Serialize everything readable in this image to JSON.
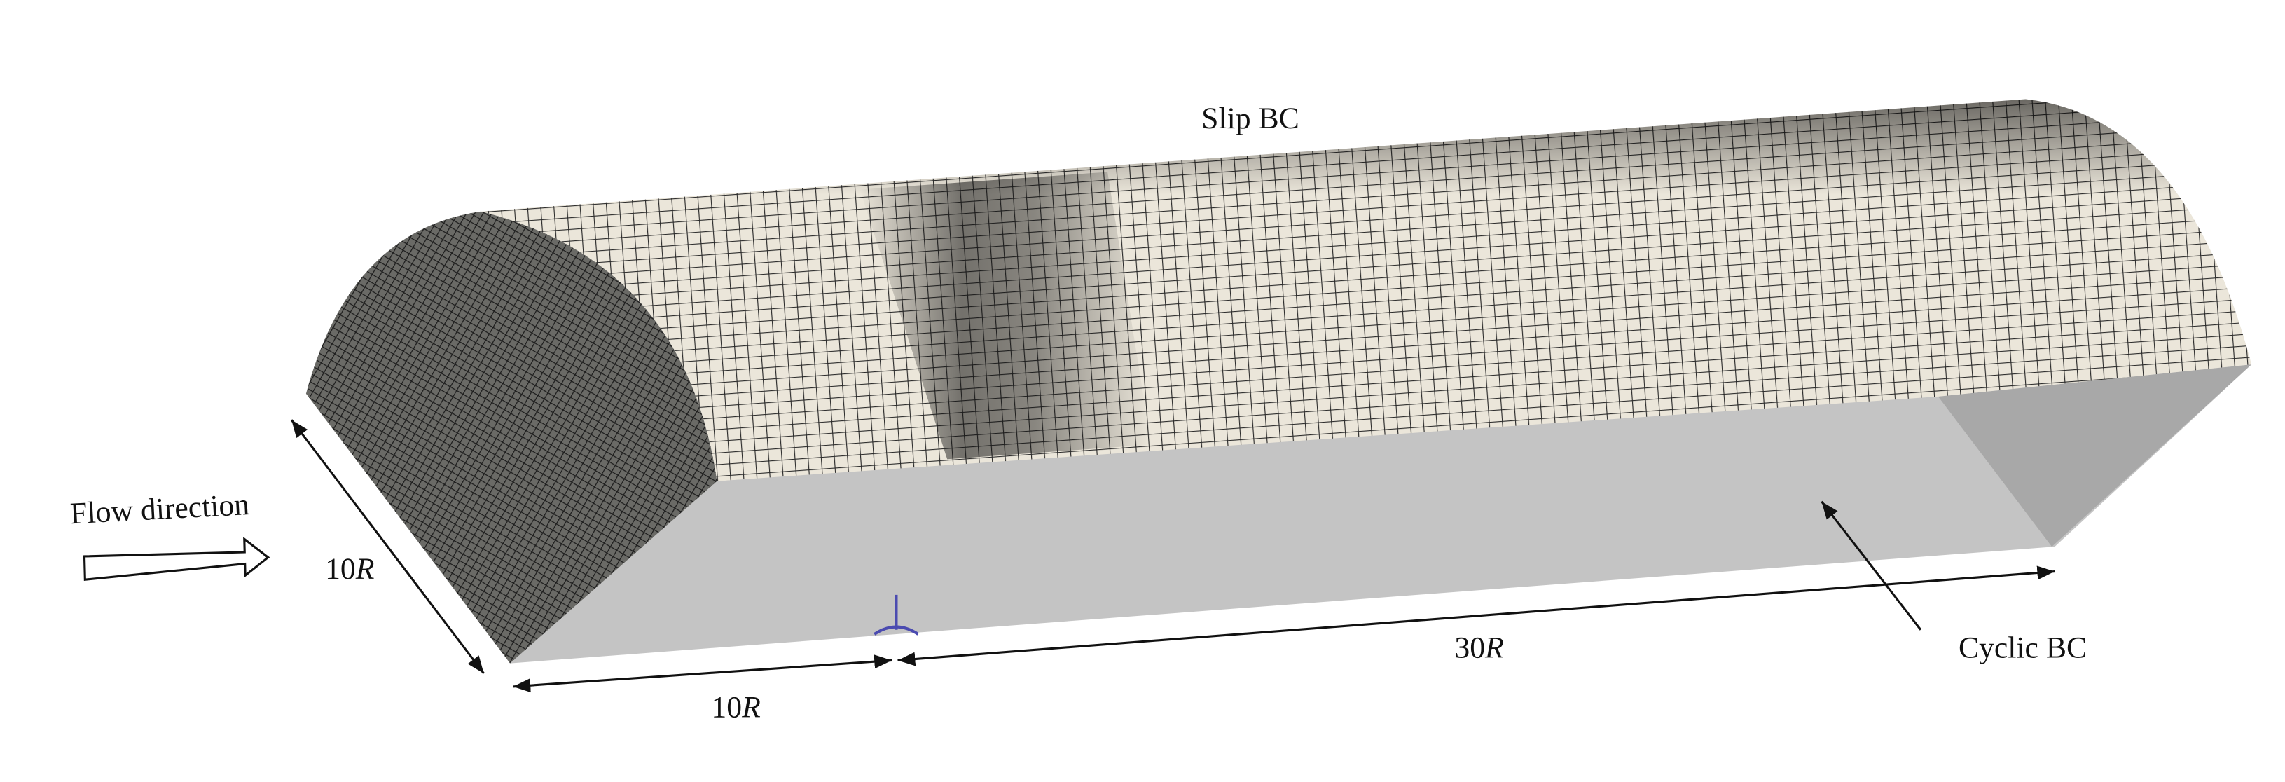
{
  "labels": {
    "top": "Slip BC",
    "flow": "Flow direction",
    "side": {
      "number": "10",
      "variable": "R"
    },
    "bottom_left": {
      "number": "10",
      "variable": "R"
    },
    "bottom_right": {
      "number": "30",
      "variable": "R"
    },
    "cyclic": "Cyclic BC"
  }
}
